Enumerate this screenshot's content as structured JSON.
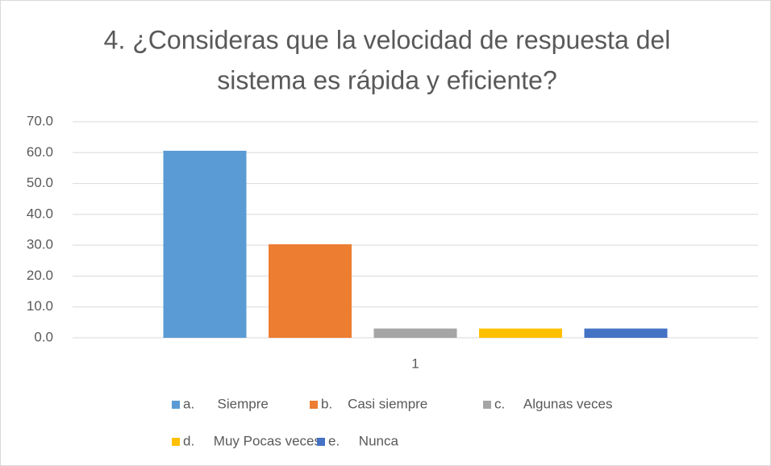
{
  "chart_data": {
    "type": "bar",
    "title": [
      "4. ¿Consideras que la velocidad de respuesta del",
      "sistema es rápida y eficiente?"
    ],
    "categories": [
      "1"
    ],
    "series": [
      {
        "name": "a.      Siempre",
        "color": "#5b9bd5",
        "values": [
          60.6
        ]
      },
      {
        "name": "b.    Casi siempre",
        "color": "#ed7d31",
        "values": [
          30.3
        ]
      },
      {
        "name": "c.     Algunas veces",
        "color": "#a5a5a5",
        "values": [
          3.0
        ]
      },
      {
        "name": "d.     Muy Pocas veces",
        "color": "#ffc000",
        "values": [
          3.0
        ]
      },
      {
        "name": "e.     Nunca",
        "color": "#4472c4",
        "values": [
          3.0
        ]
      }
    ],
    "ylim": [
      0,
      70
    ],
    "yticks": [
      {
        "value": 0,
        "label": "0.0"
      },
      {
        "value": 10,
        "label": "10.0"
      },
      {
        "value": 20,
        "label": "20.0"
      },
      {
        "value": 30,
        "label": "30.0"
      },
      {
        "value": 40,
        "label": "40.0"
      },
      {
        "value": 50,
        "label": "50.0"
      },
      {
        "value": 60,
        "label": "60.0"
      },
      {
        "value": 70,
        "label": "70.0"
      }
    ],
    "grid": true,
    "legend": "bottom"
  }
}
